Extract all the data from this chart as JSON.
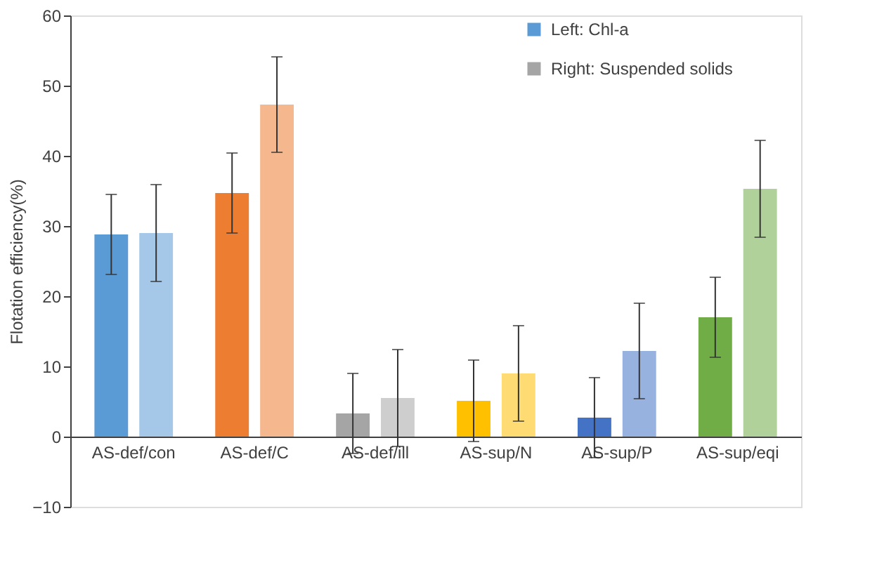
{
  "chart_data": {
    "type": "bar",
    "ylabel": "Flotation efficiency(%)",
    "categories": [
      "AS-def/con",
      "AS-def/C",
      "AS-def/ill",
      "AS-sup/N",
      "AS-sup/P",
      "AS-sup/eqi"
    ],
    "series": [
      {
        "name": "Left: Chl-a",
        "color": "#5b9bd5",
        "colors": [
          "#5b9bd5",
          "#ed7d31",
          "#a5a5a5",
          "#ffc000",
          "#4472c4",
          "#70ad47"
        ],
        "values": [
          28.8,
          34.7,
          3.3,
          5.1,
          2.7,
          17.0
        ],
        "errors": [
          5.7,
          5.7,
          5.7,
          5.8,
          5.7,
          5.7
        ]
      },
      {
        "name": "Right: Suspended solids",
        "color": "#a5a5a5",
        "colors": [
          "#5b9bd5",
          "#ed7d31",
          "#a5a5a5",
          "#ffc000",
          "#4472c4",
          "#70ad47"
        ],
        "values": [
          29.0,
          47.3,
          5.5,
          9.0,
          12.2,
          35.3
        ],
        "errors": [
          6.9,
          6.8,
          6.9,
          6.8,
          6.8,
          6.9
        ]
      }
    ],
    "ylim": [
      -10,
      60
    ],
    "yticks": [
      -10,
      0,
      10,
      20,
      30,
      40,
      50,
      60
    ],
    "grid": false,
    "legend": "top right"
  }
}
